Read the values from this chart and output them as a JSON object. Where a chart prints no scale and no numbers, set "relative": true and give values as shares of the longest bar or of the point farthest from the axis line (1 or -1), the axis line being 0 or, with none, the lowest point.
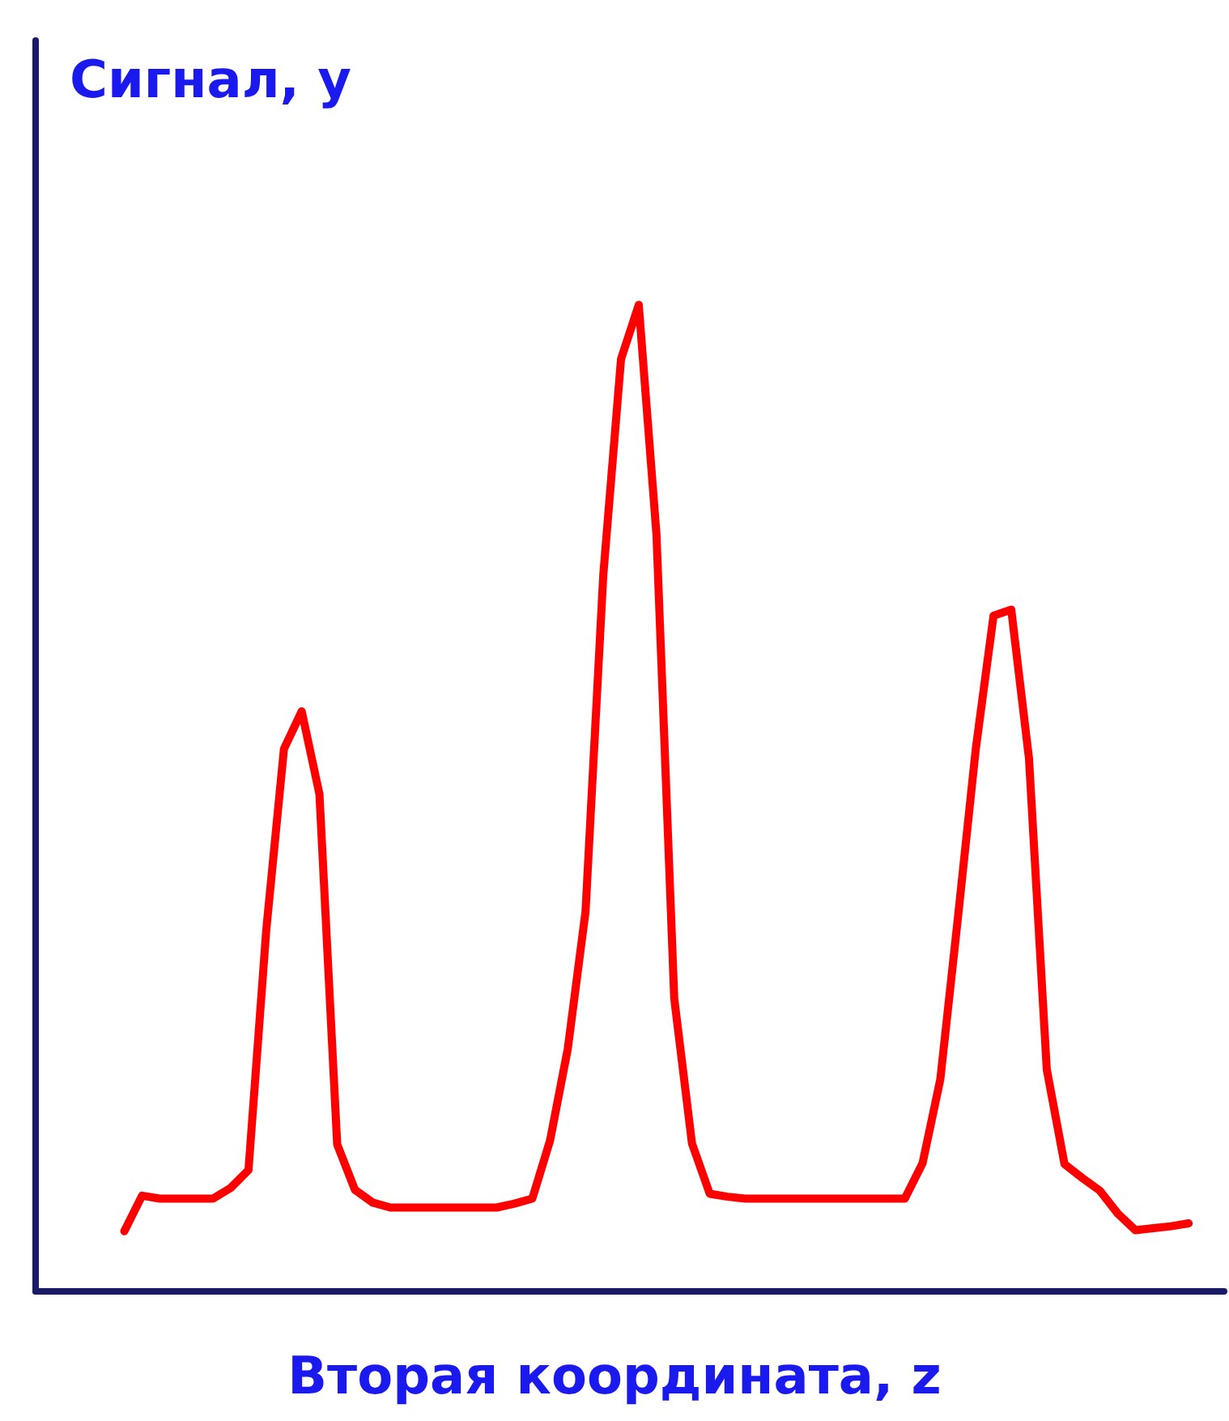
{
  "chart_data": {
    "type": "line",
    "relative": true,
    "xlabel": "Вторая координата, z",
    "ylabel": "Сигнал, у",
    "grid": false,
    "marker": "none",
    "line_style": "solid",
    "categories": [
      null,
      null,
      null,
      null,
      null,
      null,
      null,
      null,
      null,
      null,
      null,
      null,
      null,
      null,
      null,
      null,
      null,
      null,
      null,
      null,
      null,
      null,
      null,
      null,
      null,
      null,
      null,
      null,
      null,
      null,
      null,
      null,
      null,
      null,
      null,
      null,
      null,
      null,
      null,
      null,
      null,
      null,
      null,
      null,
      null,
      null,
      null,
      null,
      null,
      null,
      null,
      null,
      null,
      null,
      null,
      null,
      null,
      null,
      null,
      null,
      null,
      null,
      null,
      null,
      null,
      null,
      null,
      null
    ],
    "series": [
      {
        "color": "#ff0000",
        "values": [
          null,
          null,
          null,
          null,
          null,
          0.061,
          0.097,
          0.094,
          0.094,
          0.094,
          0.094,
          0.105,
          0.123,
          0.366,
          0.55,
          0.588,
          0.504,
          0.149,
          0.103,
          0.09,
          0.085,
          0.085,
          0.085,
          0.085,
          0.085,
          0.085,
          0.085,
          0.089,
          0.094,
          0.153,
          0.246,
          0.385,
          0.726,
          0.945,
          1,
          0.767,
          0.297,
          0.15,
          0.099,
          0.096,
          0.094,
          0.094,
          0.094,
          0.094,
          0.094,
          0.094,
          0.094,
          0.094,
          0.094,
          0.094,
          0.13,
          0.215,
          0.38,
          0.55,
          0.685,
          0.691,
          0.54,
          0.225,
          0.129,
          0.115,
          0.102,
          0.079,
          0.062,
          0.064,
          0.066,
          0.069,
          null,
          null
        ]
      }
    ]
  }
}
